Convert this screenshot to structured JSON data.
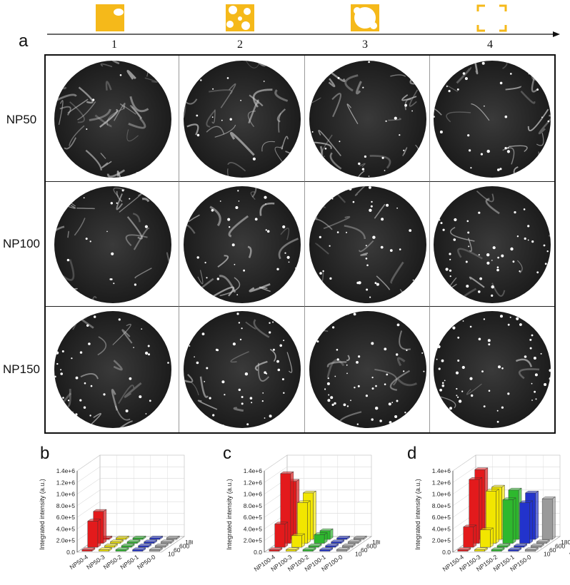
{
  "figure": {
    "panel_a_label": "a",
    "stages": [
      "1",
      "2",
      "3",
      "4"
    ],
    "rows": [
      "NP50",
      "NP100",
      "NP150"
    ],
    "accent_color": "#f5b91a"
  },
  "chart_data": [
    {
      "panel": "b",
      "type": "bar",
      "chart_kind": "3d-bar",
      "ylabel": "Integrated intensity (a.u.)",
      "depth_label": "Time (s)",
      "y_ticks": [
        "0.0",
        "2.0e+5",
        "4.0e+5",
        "6.0e+5",
        "8.0e+5",
        "1.0e+6",
        "1.2e+6",
        "1.4e+6"
      ],
      "ylim": [
        0,
        1400000
      ],
      "categories": [
        "NP50-4",
        "NP50-3",
        "NP50-2",
        "NP50-1",
        "NP50-0"
      ],
      "time_ticks": [
        "10",
        "60",
        "600",
        "1800"
      ],
      "colors": [
        "#e31a1c",
        "#f2e600",
        "#2eb82e",
        "#2233cc",
        "#9a9a9a"
      ],
      "series": [
        {
          "time": "10",
          "values": [
            0,
            0,
            0,
            0,
            0
          ]
        },
        {
          "time": "60",
          "values": [
            450000,
            0,
            0,
            0,
            0
          ]
        },
        {
          "time": "600",
          "values": [
            550000,
            0,
            0,
            0,
            0
          ]
        },
        {
          "time": "1800",
          "values": [
            0,
            0,
            0,
            0,
            0
          ]
        }
      ]
    },
    {
      "panel": "c",
      "type": "bar",
      "chart_kind": "3d-bar",
      "ylabel": "Integrated intensity (a.u.)",
      "depth_label": "Time (s)",
      "y_ticks": [
        "0.0",
        "2.0e+5",
        "4.0e+5",
        "6.0e+5",
        "8.0e+5",
        "1.0e+6",
        "1.2e+6",
        "1.4e+6"
      ],
      "ylim": [
        0,
        1400000
      ],
      "categories": [
        "NP100-4",
        "NP100-3",
        "NP100-2",
        "NP100-1",
        "NP100-0"
      ],
      "time_ticks": [
        "10",
        "60",
        "600",
        "1800"
      ],
      "colors": [
        "#e31a1c",
        "#f2e600",
        "#2eb82e",
        "#2233cc",
        "#9a9a9a"
      ],
      "series": [
        {
          "time": "10",
          "values": [
            0,
            0,
            0,
            0,
            0
          ]
        },
        {
          "time": "60",
          "values": [
            400000,
            200000,
            0,
            0,
            0
          ]
        },
        {
          "time": "600",
          "values": [
            1200000,
            700000,
            150000,
            0,
            0
          ]
        },
        {
          "time": "1800",
          "values": [
            1000000,
            800000,
            150000,
            0,
            0
          ]
        }
      ]
    },
    {
      "panel": "d",
      "type": "bar",
      "chart_kind": "3d-bar",
      "ylabel": "Integrated intensity (a.u.)",
      "depth_label": "Time (s)",
      "y_ticks": [
        "0.0",
        "2.0e+5",
        "4.0e+5",
        "6.0e+5",
        "8.0e+5",
        "1.0e+6",
        "1.2e+6",
        "1.4e+6"
      ],
      "ylim": [
        0,
        1400000
      ],
      "categories": [
        "NP150-4",
        "NP150-3",
        "NP150-2",
        "NP150-1",
        "NP150-0"
      ],
      "time_ticks": [
        "10",
        "60",
        "600",
        "1800"
      ],
      "colors": [
        "#e31a1c",
        "#f2e600",
        "#2eb82e",
        "#2233cc",
        "#9a9a9a"
      ],
      "series": [
        {
          "time": "10",
          "values": [
            0,
            0,
            0,
            0,
            0
          ]
        },
        {
          "time": "60",
          "values": [
            350000,
            300000,
            0,
            0,
            0
          ]
        },
        {
          "time": "600",
          "values": [
            1100000,
            900000,
            750000,
            700000,
            0
          ]
        },
        {
          "time": "1800",
          "values": [
            1200000,
            900000,
            850000,
            800000,
            700000
          ]
        }
      ]
    }
  ]
}
